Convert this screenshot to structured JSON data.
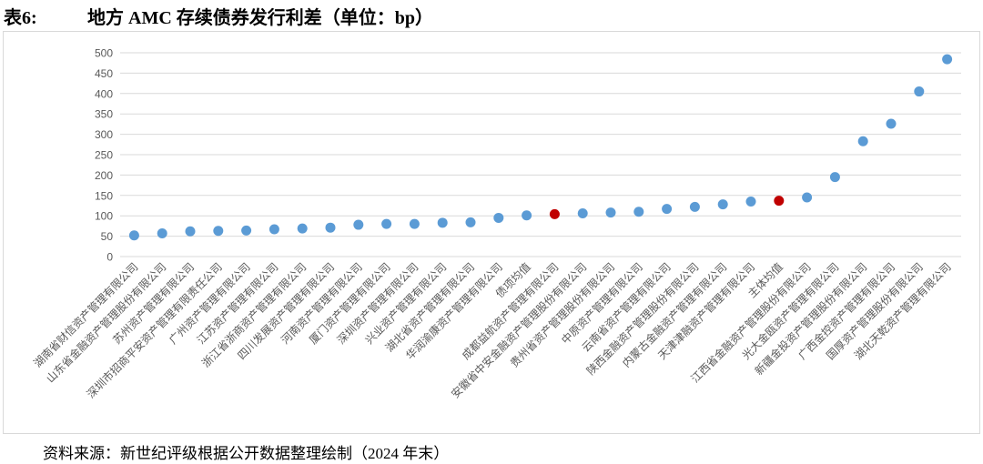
{
  "header": {
    "table_label": "表6:",
    "title": "地方 AMC 存续债券发行利差（单位：bp）"
  },
  "footer": {
    "source": "资料来源：新世纪评级根据公开数据整理绘制（2024 年末）"
  },
  "colors": {
    "point": "#5b9bd5",
    "highlight": "#c00000",
    "grid": "#d9d9d9",
    "tick_text": "#595959"
  },
  "chart_data": {
    "type": "scatter",
    "title": "",
    "xlabel": "",
    "ylabel": "",
    "ylim": [
      0,
      500
    ],
    "yticks": [
      0,
      50,
      100,
      150,
      200,
      250,
      300,
      350,
      400,
      450,
      500
    ],
    "grid": true,
    "legend": "none",
    "categories": [
      "湖南省财信资产管理有限公司",
      "山东省金融资产管理股份有限公司",
      "苏州资产管理有限公司",
      "深圳市招商平安资产管理有限责任公司",
      "广州资产管理有限公司",
      "江苏资产管理有限公司",
      "浙江省浙商资产管理有限公司",
      "四川发展资产管理有限公司",
      "河南资产管理有限公司",
      "厦门资产管理有限公司",
      "深圳资产管理有限公司",
      "兴业资产管理有限公司",
      "湖北省资产管理有限公司",
      "华润渝康资产管理有限公司",
      "债项均值",
      "成都益航资产管理有限公司",
      "安徽省中安金融资产管理股份有限公司",
      "贵州省资产管理股份有限公司",
      "中原资产管理有限公司",
      "云南省资产管理有限公司",
      "陕西金融资产管理股份有限公司",
      "内蒙古金融资产管理有限公司",
      "天津津融资产管理有限公司",
      "主体均值",
      "江西省金融资产管理股份有限公司",
      "光大金瓯资产管理有限公司",
      "新疆金投资产管理股份有限公司",
      "广西金控资产管理有限公司",
      "国厚资产管理股份有限公司",
      "湖北天乾资产管理有限公司"
    ],
    "values": [
      52,
      57,
      62,
      63,
      64,
      67,
      69,
      71,
      78,
      80,
      80,
      83,
      84,
      95,
      101,
      104,
      106,
      108,
      110,
      117,
      122,
      128,
      135,
      137,
      145,
      195,
      283,
      326,
      405,
      484
    ],
    "highlight_indices": [
      15,
      23
    ]
  }
}
